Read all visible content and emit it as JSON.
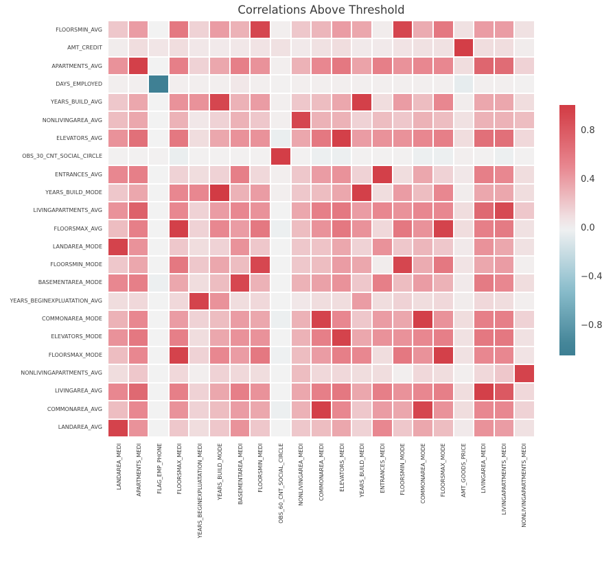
{
  "figure": {
    "title": "Correlations Above Threshold"
  },
  "chart_data": {
    "type": "heatmap",
    "title": "Correlations Above Threshold",
    "x_labels": [
      "LANDAREA_MEDI",
      "APARTMENTS_MEDI",
      "FLAG_EMP_PHONE",
      "FLOORSMAX_MEDI",
      "YEARS_BEGINEXPLUATATION_MEDI",
      "YEARS_BUILD_MODE",
      "BASEMENTAREA_MEDI",
      "FLOORSMIN_MEDI",
      "OBS_60_CNT_SOCIAL_CIRCLE",
      "NONLIVINGAREA_MEDI",
      "COMMONAREA_MEDI",
      "ELEVATORS_MEDI",
      "YEARS_BUILD_MEDI",
      "ENTRANCES_MEDI",
      "FLOORSMIN_MODE",
      "COMMONAREA_MODE",
      "FLOORSMAX_MODE",
      "AMT_GOODS_PRICE",
      "LIVINGAREA_MEDI",
      "LIVINGAPARTMENTS_MEDI",
      "NONLIVINGAPARTMENTS_MEDI"
    ],
    "y_labels": [
      "FLOORSMIN_AVG",
      "AMT_CREDIT",
      "APARTMENTS_AVG",
      "DAYS_EMPLOYED",
      "YEARS_BUILD_AVG",
      "NONLIVINGAREA_AVG",
      "ELEVATORS_AVG",
      "OBS_30_CNT_SOCIAL_CIRCLE",
      "ENTRANCES_AVG",
      "YEARS_BUILD_MODE",
      "LIVINGAPARTMENTS_AVG",
      "FLOORSMAX_AVG",
      "LANDAREA_MODE",
      "FLOORSMIN_MODE",
      "BASEMENTAREA_MODE",
      "YEARS_BEGINEXPLUATATION_AVG",
      "COMMONAREA_MODE",
      "ELEVATORS_MODE",
      "FLOORSMAX_MODE",
      "NONLIVINGAPARTMENTS_AVG",
      "LIVINGAREA_AVG",
      "COMMONAREA_AVG",
      "LANDAREA_AVG"
    ],
    "matrix": [
      [
        0.2,
        0.4,
        0.0,
        0.6,
        0.15,
        0.4,
        0.3,
        0.93,
        0.02,
        0.2,
        0.28,
        0.4,
        0.35,
        0.03,
        0.93,
        0.33,
        0.6,
        0.08,
        0.4,
        0.4,
        0.08
      ],
      [
        0.03,
        0.1,
        0.06,
        0.1,
        0.05,
        0.04,
        0.05,
        0.07,
        0.08,
        0.04,
        0.08,
        0.1,
        0.04,
        0.04,
        0.07,
        0.08,
        0.08,
        0.98,
        0.1,
        0.1,
        0.03
      ],
      [
        0.45,
        0.97,
        0.0,
        0.55,
        0.15,
        0.35,
        0.55,
        0.45,
        0.02,
        0.3,
        0.5,
        0.6,
        0.37,
        0.55,
        0.45,
        0.5,
        0.5,
        0.1,
        0.72,
        0.68,
        0.15
      ],
      [
        0.02,
        0.02,
        -0.99,
        0.02,
        0.02,
        0.02,
        0.05,
        0.02,
        0.01,
        0.02,
        0.02,
        0.02,
        0.02,
        0.02,
        0.02,
        0.02,
        0.02,
        -0.06,
        0.02,
        0.02,
        0.01
      ],
      [
        0.2,
        0.35,
        0.0,
        0.45,
        0.45,
        0.93,
        0.3,
        0.4,
        0.02,
        0.2,
        0.25,
        0.35,
        0.97,
        0.1,
        0.4,
        0.25,
        0.5,
        0.03,
        0.35,
        0.35,
        0.1
      ],
      [
        0.25,
        0.35,
        0.0,
        0.3,
        0.05,
        0.15,
        0.3,
        0.2,
        0.02,
        0.93,
        0.3,
        0.3,
        0.15,
        0.25,
        0.2,
        0.3,
        0.25,
        0.08,
        0.3,
        0.3,
        0.25
      ],
      [
        0.45,
        0.65,
        0.0,
        0.6,
        0.1,
        0.35,
        0.45,
        0.45,
        -0.04,
        0.35,
        0.6,
        0.97,
        0.4,
        0.45,
        0.45,
        0.5,
        0.55,
        0.1,
        0.65,
        0.65,
        0.12
      ],
      [
        0.01,
        0.01,
        0.01,
        -0.04,
        0.01,
        0.01,
        0.01,
        0.01,
        0.98,
        0.01,
        -0.03,
        -0.03,
        0.01,
        0.01,
        0.01,
        -0.03,
        -0.03,
        0.02,
        0.01,
        -0.03,
        0.01
      ],
      [
        0.5,
        0.55,
        0.0,
        0.15,
        0.1,
        0.15,
        0.55,
        0.12,
        0.02,
        0.2,
        0.4,
        0.45,
        0.15,
        0.97,
        0.1,
        0.35,
        0.15,
        0.05,
        0.55,
        0.5,
        0.1
      ],
      [
        0.2,
        0.35,
        0.0,
        0.5,
        0.5,
        1.0,
        0.3,
        0.4,
        0.02,
        0.2,
        0.25,
        0.35,
        0.97,
        0.1,
        0.4,
        0.25,
        0.5,
        0.03,
        0.35,
        0.35,
        0.1
      ],
      [
        0.45,
        0.75,
        0.0,
        0.5,
        0.15,
        0.4,
        0.5,
        0.45,
        0.0,
        0.35,
        0.55,
        0.6,
        0.4,
        0.5,
        0.45,
        0.5,
        0.5,
        0.1,
        0.7,
        0.9,
        0.2
      ],
      [
        0.25,
        0.55,
        0.0,
        0.97,
        0.15,
        0.5,
        0.4,
        0.6,
        -0.03,
        0.25,
        0.45,
        0.6,
        0.45,
        0.12,
        0.6,
        0.45,
        0.95,
        0.1,
        0.55,
        0.58,
        0.08
      ],
      [
        0.95,
        0.45,
        0.0,
        0.2,
        0.1,
        0.15,
        0.45,
        0.2,
        0.0,
        0.2,
        0.22,
        0.35,
        0.15,
        0.45,
        0.2,
        0.28,
        0.2,
        0.04,
        0.45,
        0.35,
        0.08
      ],
      [
        0.2,
        0.35,
        0.0,
        0.6,
        0.2,
        0.35,
        0.25,
        0.92,
        0.0,
        0.2,
        0.25,
        0.4,
        0.35,
        0.03,
        0.93,
        0.33,
        0.6,
        0.07,
        0.35,
        0.4,
        0.02
      ],
      [
        0.5,
        0.55,
        -0.03,
        0.35,
        0.1,
        0.25,
        0.92,
        0.3,
        0.0,
        0.3,
        0.38,
        0.45,
        0.2,
        0.55,
        0.25,
        0.4,
        0.3,
        0.04,
        0.58,
        0.5,
        0.1
      ],
      [
        0.1,
        0.12,
        0.0,
        0.12,
        0.95,
        0.45,
        0.1,
        0.12,
        0.0,
        0.05,
        0.1,
        0.1,
        0.4,
        0.1,
        0.15,
        0.1,
        0.12,
        0.03,
        0.12,
        0.1,
        0.02
      ],
      [
        0.3,
        0.5,
        0.0,
        0.4,
        0.15,
        0.25,
        0.4,
        0.35,
        -0.03,
        0.3,
        0.95,
        0.5,
        0.2,
        0.4,
        0.35,
        0.97,
        0.45,
        0.1,
        0.55,
        0.55,
        0.15
      ],
      [
        0.45,
        0.6,
        0.0,
        0.55,
        0.1,
        0.35,
        0.45,
        0.45,
        0.0,
        0.3,
        0.55,
        0.95,
        0.35,
        0.45,
        0.45,
        0.5,
        0.55,
        0.08,
        0.6,
        0.6,
        0.08
      ],
      [
        0.25,
        0.5,
        0.0,
        0.95,
        0.15,
        0.5,
        0.4,
        0.6,
        -0.02,
        0.25,
        0.4,
        0.55,
        0.5,
        0.1,
        0.6,
        0.45,
        0.97,
        0.08,
        0.5,
        0.5,
        0.07
      ],
      [
        0.1,
        0.2,
        0.0,
        0.12,
        0.02,
        0.15,
        0.12,
        0.1,
        0.0,
        0.25,
        0.12,
        0.12,
        0.1,
        0.1,
        0.02,
        0.12,
        0.1,
        0.02,
        0.12,
        0.2,
        0.95
      ],
      [
        0.5,
        0.7,
        0.0,
        0.55,
        0.15,
        0.35,
        0.55,
        0.45,
        0.0,
        0.35,
        0.55,
        0.6,
        0.35,
        0.55,
        0.45,
        0.5,
        0.55,
        0.1,
        0.97,
        0.8,
        0.12
      ],
      [
        0.25,
        0.5,
        0.0,
        0.45,
        0.15,
        0.25,
        0.4,
        0.35,
        -0.03,
        0.3,
        0.97,
        0.5,
        0.2,
        0.4,
        0.35,
        0.93,
        0.45,
        0.1,
        0.5,
        0.5,
        0.15
      ],
      [
        0.95,
        0.45,
        0.0,
        0.2,
        0.1,
        0.2,
        0.45,
        0.2,
        0.0,
        0.2,
        0.25,
        0.35,
        0.15,
        0.5,
        0.2,
        0.35,
        0.25,
        0.04,
        0.45,
        0.4,
        0.08
      ]
    ],
    "value_range": [
      -1.0,
      1.0
    ],
    "colorbar": {
      "position": "right",
      "top_value": 1.01,
      "bottom_value": -1.05,
      "ticks": [
        {
          "value": 0.8,
          "label": "0.8"
        },
        {
          "value": 0.4,
          "label": "0.4"
        },
        {
          "value": 0.0,
          "label": "0.0"
        },
        {
          "value": -0.4,
          "label": "−0.4"
        },
        {
          "value": -0.8,
          "label": "−0.8"
        }
      ]
    },
    "palette": {
      "positive_max": "#d23b44",
      "positive_mid": "#e88790",
      "zero": "#f2f2f2",
      "negative_mid": "#8cbecd",
      "negative_max": "#3d7f93"
    },
    "grid_gap_color": "#ffffff"
  }
}
